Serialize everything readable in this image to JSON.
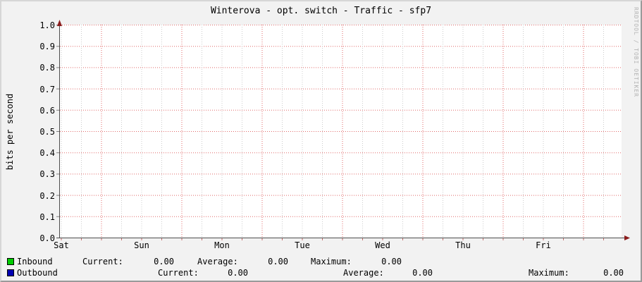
{
  "chart_data": {
    "type": "line",
    "title": "Winterova - opt. switch - Traffic - sfp7",
    "ylabel": "bits per second",
    "xlabel": "",
    "ylim": [
      0.0,
      1.0
    ],
    "y_tick_step": 0.1,
    "y_ticks": [
      "0.0",
      "0.1",
      "0.2",
      "0.3",
      "0.4",
      "0.5",
      "0.6",
      "0.7",
      "0.8",
      "0.9",
      "1.0"
    ],
    "x_ticks": [
      "Sat",
      "Sun",
      "Mon",
      "Tue",
      "Wed",
      "Thu",
      "Fri"
    ],
    "grid": true,
    "legend_position": "bottom",
    "series": [
      {
        "name": "Inbound",
        "color": "#00cc00",
        "values": [
          0,
          0,
          0,
          0,
          0,
          0,
          0
        ]
      },
      {
        "name": "Outbound",
        "color": "#0000b3",
        "values": [
          0,
          0,
          0,
          0,
          0,
          0,
          0
        ]
      }
    ],
    "colors": {
      "plot_bg": "#ffffff",
      "outer_bg": "#f2f2f2",
      "major_grid": "#e06a6a",
      "minor_grid": "#cccccc",
      "axis": "#4d4d4d",
      "arrow": "#8b1d1d",
      "tick": "#c87070",
      "y_tick_mark": "#808080"
    }
  },
  "watermark": "RRDTOOL / TOBI OETIKER",
  "legend": {
    "rows": [
      {
        "name": "Inbound",
        "swatch_color": "#00cc00",
        "items": [
          {
            "label": "Current:",
            "value": "0.00"
          },
          {
            "label": "Average:",
            "value": "0.00"
          },
          {
            "label": "Maximum:",
            "value": "0.00"
          }
        ]
      },
      {
        "name": "Outbound",
        "swatch_color": "#0000b3",
        "items": [
          {
            "label": "Current:",
            "value": "0.00"
          },
          {
            "label": "Average:",
            "value": "0.00"
          },
          {
            "label": "Maximum:",
            "value": "0.00"
          }
        ]
      }
    ]
  }
}
